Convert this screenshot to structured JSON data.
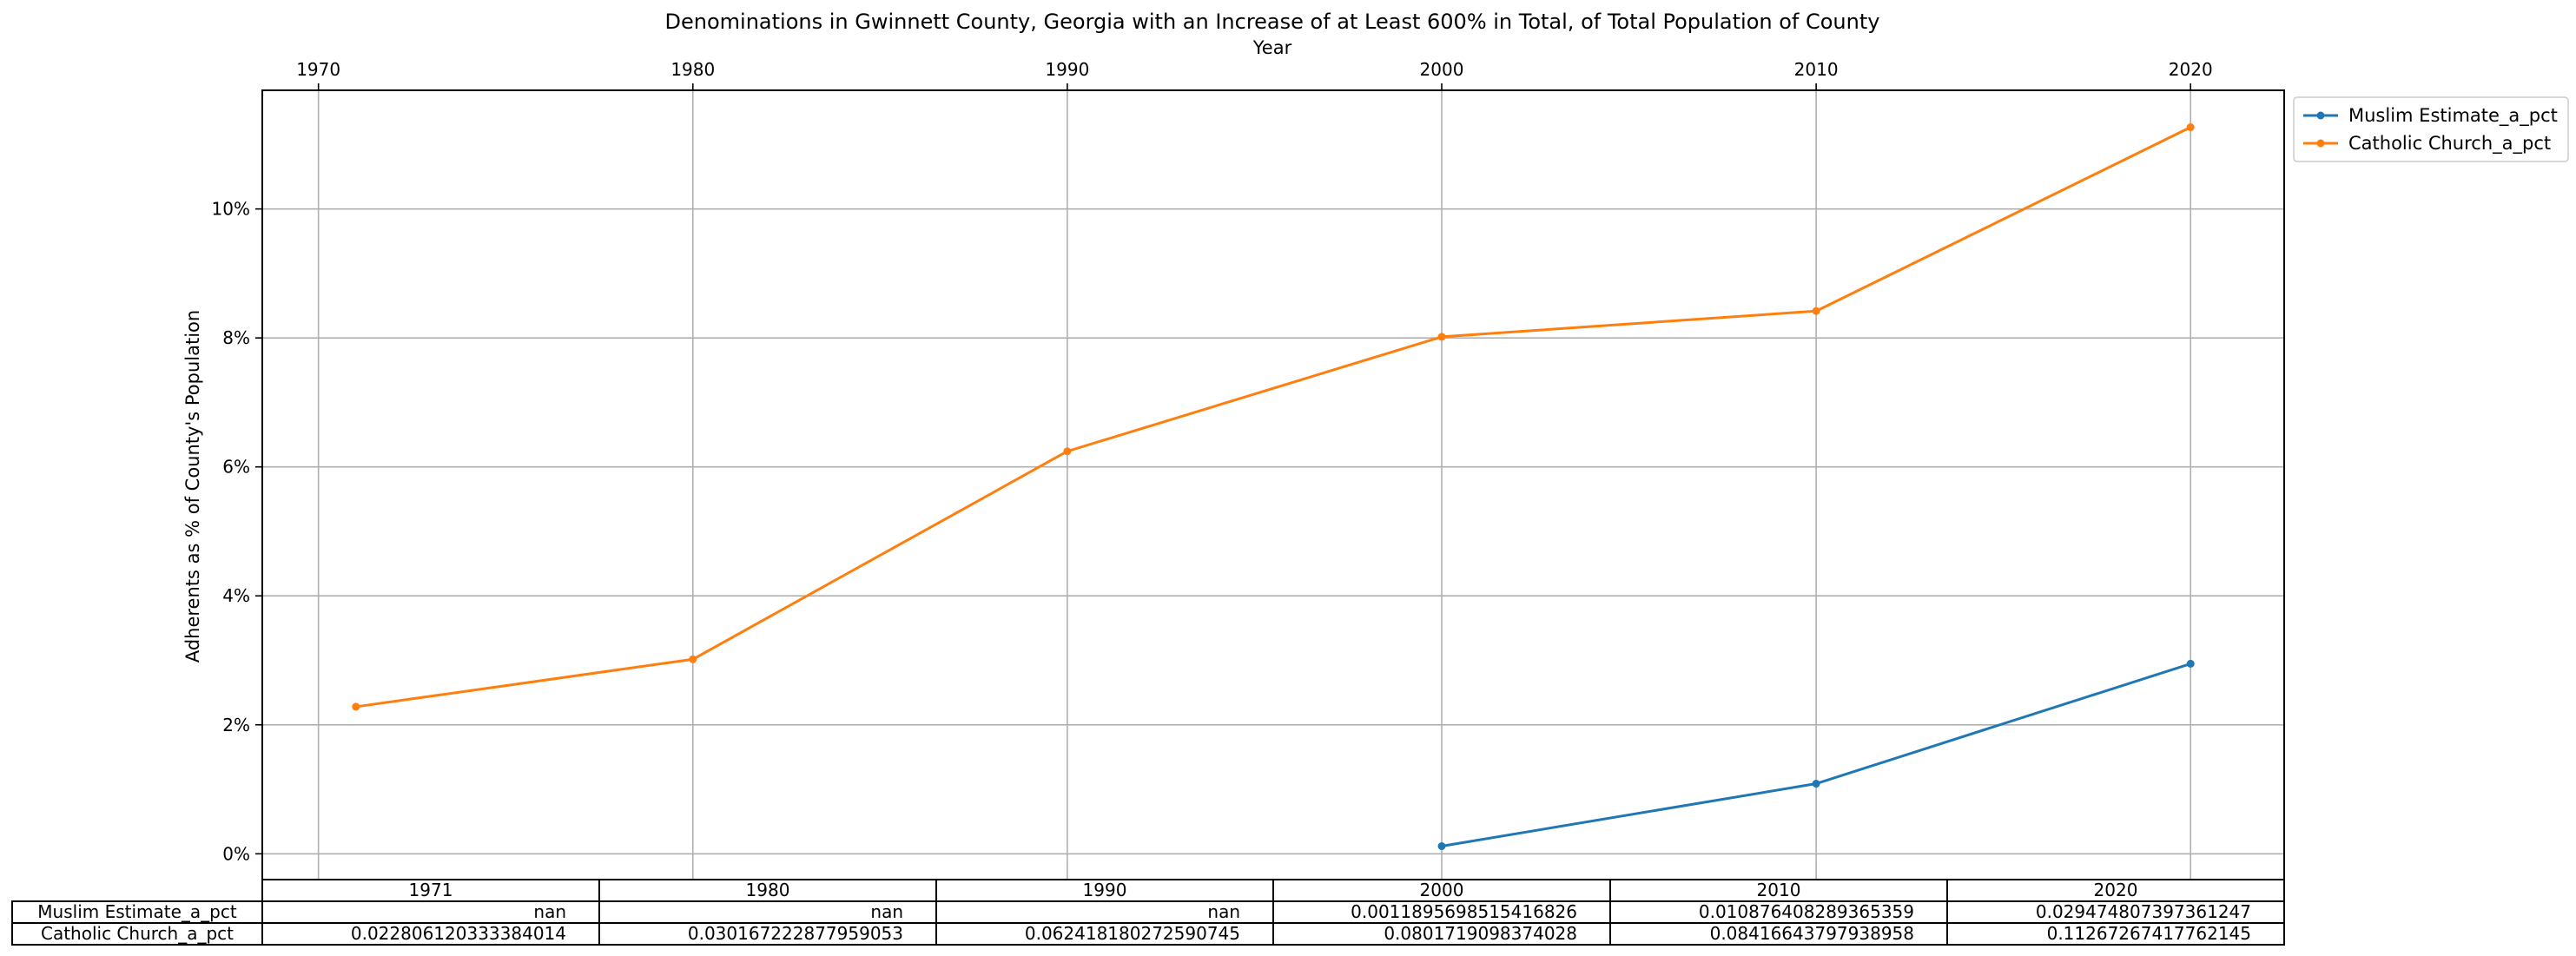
{
  "chart_data": {
    "type": "line",
    "title": "Denominations in Gwinnett County, Georgia with an Increase of at Least 600% in Total, of Total Population of County",
    "xlabel": "Year",
    "ylabel": "Adherents as % of County's Population",
    "x_ticks": [
      "1970",
      "1980",
      "1990",
      "2000",
      "2010",
      "2020"
    ],
    "x_tick_values": [
      1970,
      1980,
      1990,
      2000,
      2010,
      2020
    ],
    "y_ticks": [
      "0%",
      "2%",
      "4%",
      "6%",
      "8%",
      "10%"
    ],
    "y_tick_values": [
      0,
      0.02,
      0.04,
      0.06,
      0.08,
      0.1
    ],
    "xlim": [
      1968.5,
      2022.5
    ],
    "ylim": [
      -0.004,
      0.1184
    ],
    "grid": true,
    "legend_position": "outside-top-right",
    "x": [
      1971,
      1980,
      1990,
      2000,
      2010,
      2020
    ],
    "series": [
      {
        "name": "Muslim Estimate_a_pct",
        "color": "#1f77b4",
        "values": [
          null,
          null,
          null,
          0.0011895698515416826,
          0.010876408289365359,
          0.029474807397361247
        ]
      },
      {
        "name": "Catholic Church_a_pct",
        "color": "#ff7f0e",
        "values": [
          0.022806120333384014,
          0.030167222877959053,
          0.062418180272590745,
          0.0801719098374028,
          0.08416643797938958,
          0.11267267417762145
        ]
      }
    ],
    "table": {
      "columns": [
        "1971",
        "1980",
        "1990",
        "2000",
        "2010",
        "2020"
      ],
      "rows": [
        {
          "label": "Muslim Estimate_a_pct",
          "cells": [
            "nan",
            "nan",
            "nan",
            "0.0011895698515416826",
            "0.010876408289365359",
            "0.029474807397361247"
          ]
        },
        {
          "label": "Catholic Church_a_pct",
          "cells": [
            "0.022806120333384014",
            "0.030167222877959053",
            "0.062418180272590745",
            "0.0801719098374028",
            "0.08416643797938958",
            "0.11267267417762145"
          ]
        }
      ]
    }
  }
}
